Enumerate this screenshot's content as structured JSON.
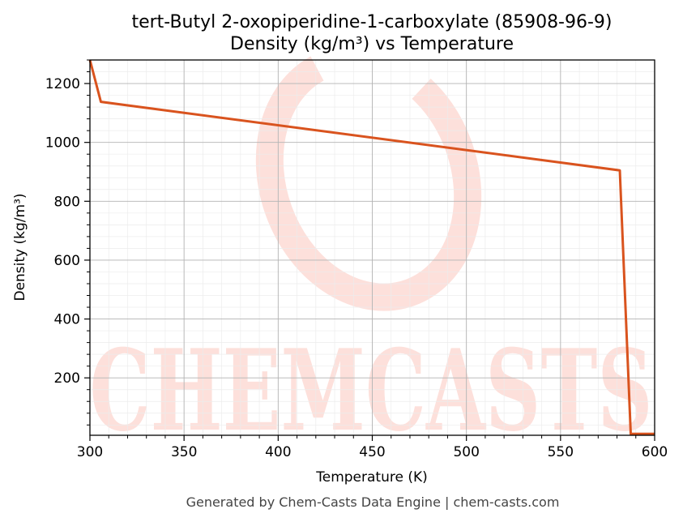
{
  "chart_data": {
    "type": "line",
    "title_line1": "tert-Butyl 2-oxopiperidine-1-carboxylate (85908-96-9)",
    "title_line2": "Density (kg/m³) vs Temperature",
    "xlabel": "Temperature (K)",
    "ylabel": "Density (kg/m³)",
    "xlim": [
      300,
      600
    ],
    "ylim": [
      5,
      1280
    ],
    "xticks": [
      300,
      350,
      400,
      450,
      500,
      550,
      600
    ],
    "yticks": [
      200,
      400,
      600,
      800,
      1000,
      1200
    ],
    "grid": true,
    "line_color": "#d9531e",
    "series": [
      {
        "x": [
          300,
          305.8,
          581.5,
          587.3,
          600
        ],
        "y": [
          1280,
          1138,
          905,
          10,
          10
        ]
      }
    ]
  },
  "watermark": "CHEMCASTS",
  "footer": "Generated by Chem-Casts Data Engine | chem-casts.com"
}
